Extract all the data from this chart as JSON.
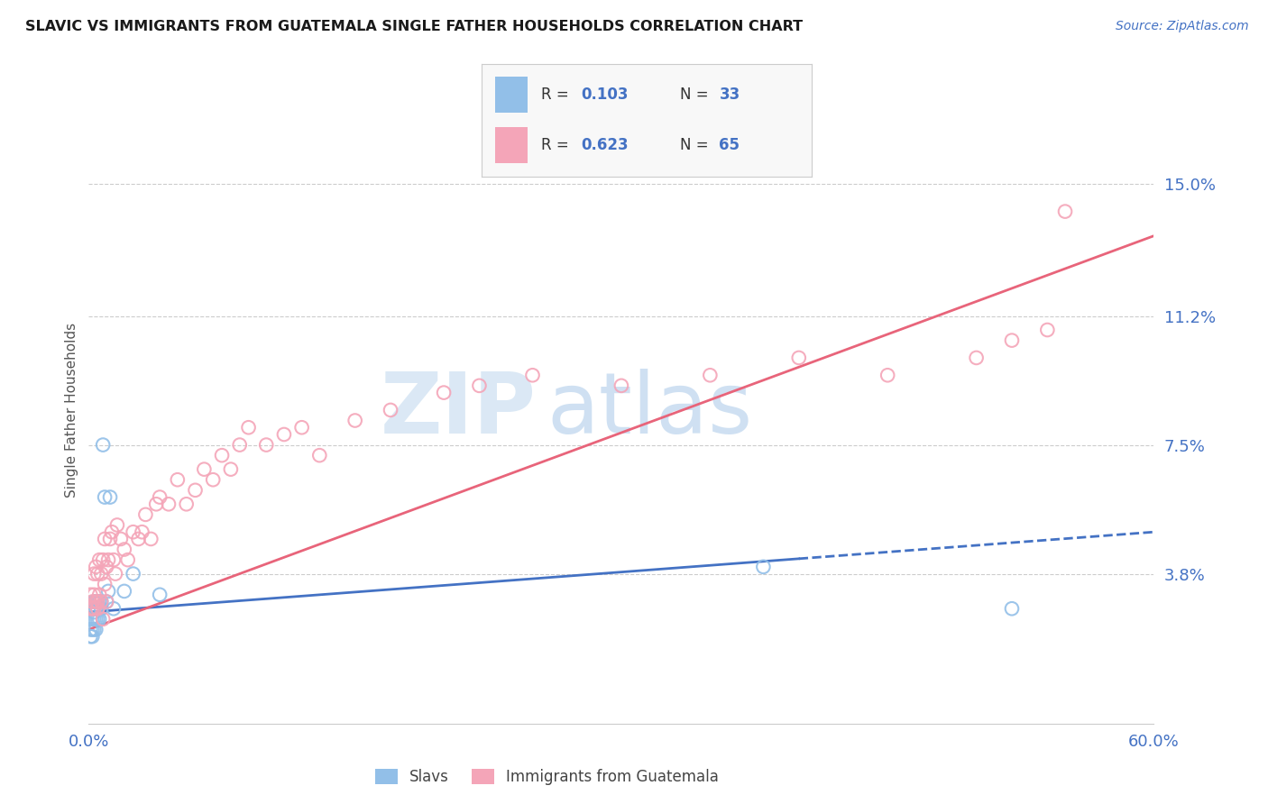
{
  "title": "SLAVIC VS IMMIGRANTS FROM GUATEMALA SINGLE FATHER HOUSEHOLDS CORRELATION CHART",
  "source": "Source: ZipAtlas.com",
  "ylabel": "Single Father Households",
  "x_min": 0.0,
  "x_max": 0.6,
  "y_min": 0.0,
  "y_max": 0.165,
  "x_tick_labels": [
    "0.0%",
    "60.0%"
  ],
  "y_tick_values": [
    0.038,
    0.075,
    0.112,
    0.15
  ],
  "y_tick_labels": [
    "3.8%",
    "7.5%",
    "11.2%",
    "15.0%"
  ],
  "slavs_color": "#92bfe8",
  "guatemala_color": "#f4a5b8",
  "slavs_line_color": "#4472c4",
  "guatemala_line_color": "#e8647a",
  "watermark_zip": "ZIP",
  "watermark_atlas": "atlas",
  "slavs_x": [
    0.001,
    0.001,
    0.001,
    0.002,
    0.002,
    0.002,
    0.002,
    0.003,
    0.003,
    0.003,
    0.003,
    0.004,
    0.004,
    0.004,
    0.004,
    0.005,
    0.005,
    0.005,
    0.006,
    0.006,
    0.007,
    0.007,
    0.008,
    0.009,
    0.01,
    0.011,
    0.012,
    0.014,
    0.02,
    0.025,
    0.04,
    0.38,
    0.52
  ],
  "slavs_y": [
    0.02,
    0.022,
    0.025,
    0.02,
    0.022,
    0.025,
    0.028,
    0.022,
    0.025,
    0.027,
    0.03,
    0.022,
    0.025,
    0.028,
    0.03,
    0.025,
    0.028,
    0.03,
    0.025,
    0.03,
    0.028,
    0.03,
    0.075,
    0.06,
    0.03,
    0.033,
    0.06,
    0.028,
    0.033,
    0.038,
    0.032,
    0.04,
    0.028
  ],
  "guatemala_x": [
    0.001,
    0.001,
    0.002,
    0.002,
    0.003,
    0.003,
    0.003,
    0.004,
    0.004,
    0.005,
    0.005,
    0.005,
    0.006,
    0.006,
    0.007,
    0.007,
    0.008,
    0.008,
    0.009,
    0.009,
    0.01,
    0.01,
    0.011,
    0.012,
    0.013,
    0.014,
    0.015,
    0.016,
    0.018,
    0.02,
    0.022,
    0.025,
    0.028,
    0.03,
    0.032,
    0.035,
    0.038,
    0.04,
    0.045,
    0.05,
    0.055,
    0.06,
    0.065,
    0.07,
    0.075,
    0.08,
    0.085,
    0.09,
    0.1,
    0.11,
    0.12,
    0.13,
    0.15,
    0.17,
    0.2,
    0.22,
    0.25,
    0.3,
    0.35,
    0.4,
    0.45,
    0.5,
    0.52,
    0.54,
    0.55
  ],
  "guatemala_y": [
    0.028,
    0.032,
    0.03,
    0.028,
    0.028,
    0.032,
    0.038,
    0.03,
    0.04,
    0.028,
    0.03,
    0.038,
    0.032,
    0.042,
    0.03,
    0.038,
    0.025,
    0.042,
    0.035,
    0.048,
    0.03,
    0.04,
    0.042,
    0.048,
    0.05,
    0.042,
    0.038,
    0.052,
    0.048,
    0.045,
    0.042,
    0.05,
    0.048,
    0.05,
    0.055,
    0.048,
    0.058,
    0.06,
    0.058,
    0.065,
    0.058,
    0.062,
    0.068,
    0.065,
    0.072,
    0.068,
    0.075,
    0.08,
    0.075,
    0.078,
    0.08,
    0.072,
    0.082,
    0.085,
    0.09,
    0.092,
    0.095,
    0.092,
    0.095,
    0.1,
    0.095,
    0.1,
    0.105,
    0.108,
    0.142
  ],
  "slavs_line_x": [
    0.0,
    0.6
  ],
  "slavs_line_y": [
    0.027,
    0.05
  ],
  "guatemala_line_x": [
    0.0,
    0.6
  ],
  "guatemala_line_y": [
    0.022,
    0.135
  ]
}
